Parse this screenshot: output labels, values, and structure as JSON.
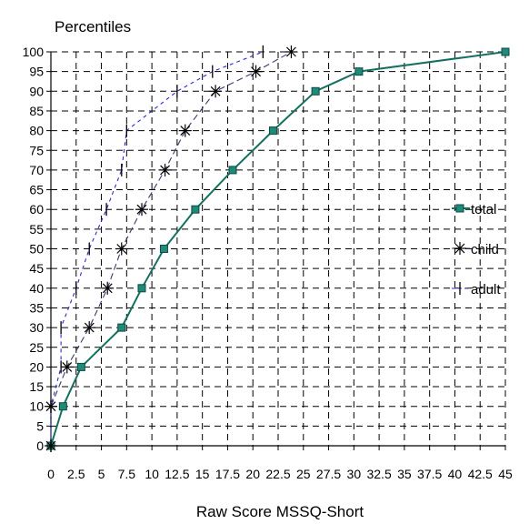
{
  "chart_data": {
    "type": "line",
    "ylabel": "Percentiles",
    "xlabel": "Raw Score MSSQ-Short",
    "xlim": [
      0,
      45
    ],
    "ylim": [
      0,
      100
    ],
    "x_ticks": [
      "0",
      "2.5",
      "5",
      "7.5",
      "10",
      "12.5",
      "15",
      "17.5",
      "20",
      "22.5",
      "25",
      "27.5",
      "30",
      "32.5",
      "35",
      "37.5",
      "40",
      "42.5",
      "45"
    ],
    "y_ticks": [
      "0",
      "5",
      "10",
      "15",
      "20",
      "25",
      "30",
      "35",
      "40",
      "45",
      "50",
      "55",
      "60",
      "65",
      "70",
      "75",
      "80",
      "85",
      "90",
      "95",
      "100"
    ],
    "grid": true,
    "legend_position": "right",
    "series": [
      {
        "name": "total",
        "marker": "square",
        "color": "#1f8a7a",
        "line_color": "#137060",
        "points": [
          [
            0,
            0
          ],
          [
            1.2,
            10
          ],
          [
            3,
            20
          ],
          [
            7,
            30
          ],
          [
            9,
            40
          ],
          [
            11.2,
            50
          ],
          [
            14.3,
            60
          ],
          [
            18,
            70
          ],
          [
            22,
            80
          ],
          [
            26.2,
            90
          ],
          [
            30.5,
            95
          ],
          [
            45,
            100
          ]
        ]
      },
      {
        "name": "child",
        "marker": "asterisk",
        "color": "#000000",
        "line_color": "#3a3a70",
        "points": [
          [
            0,
            0
          ],
          [
            0,
            10
          ],
          [
            1.6,
            20
          ],
          [
            3.8,
            30
          ],
          [
            5.6,
            40
          ],
          [
            7,
            50
          ],
          [
            9,
            60
          ],
          [
            11.3,
            70
          ],
          [
            13.3,
            80
          ],
          [
            16.3,
            90
          ],
          [
            20.3,
            95
          ],
          [
            23.8,
            100
          ]
        ]
      },
      {
        "name": "adult",
        "marker": "vbar",
        "color": "#000000",
        "line_color": "#2a2ad0",
        "points": [
          [
            0,
            0
          ],
          [
            0,
            10
          ],
          [
            1,
            20
          ],
          [
            1,
            30
          ],
          [
            2.5,
            40
          ],
          [
            3.8,
            50
          ],
          [
            5.5,
            60
          ],
          [
            7,
            70
          ],
          [
            7.5,
            80
          ],
          [
            12.5,
            90
          ],
          [
            16,
            95
          ],
          [
            21,
            100
          ]
        ]
      }
    ]
  }
}
